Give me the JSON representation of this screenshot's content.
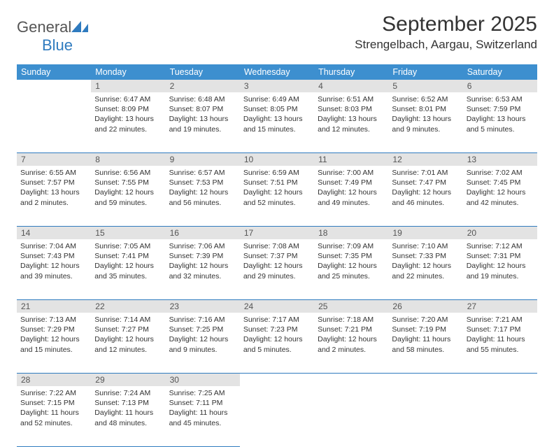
{
  "brand": {
    "name_part1": "General",
    "name_part2": "Blue",
    "logo_color": "#2f7bbf"
  },
  "title": "September 2025",
  "location": "Strengelbach, Aargau, Switzerland",
  "colors": {
    "header_bg": "#3d8fcf",
    "header_text": "#ffffff",
    "daynum_bg": "#e3e3e3",
    "border": "#2f7bbf",
    "text": "#333333"
  },
  "weekdays": [
    "Sunday",
    "Monday",
    "Tuesday",
    "Wednesday",
    "Thursday",
    "Friday",
    "Saturday"
  ],
  "weeks": [
    [
      {
        "n": "",
        "sunrise": "",
        "sunset": "",
        "daylight1": "",
        "daylight2": ""
      },
      {
        "n": "1",
        "sunrise": "Sunrise: 6:47 AM",
        "sunset": "Sunset: 8:09 PM",
        "daylight1": "Daylight: 13 hours",
        "daylight2": "and 22 minutes."
      },
      {
        "n": "2",
        "sunrise": "Sunrise: 6:48 AM",
        "sunset": "Sunset: 8:07 PM",
        "daylight1": "Daylight: 13 hours",
        "daylight2": "and 19 minutes."
      },
      {
        "n": "3",
        "sunrise": "Sunrise: 6:49 AM",
        "sunset": "Sunset: 8:05 PM",
        "daylight1": "Daylight: 13 hours",
        "daylight2": "and 15 minutes."
      },
      {
        "n": "4",
        "sunrise": "Sunrise: 6:51 AM",
        "sunset": "Sunset: 8:03 PM",
        "daylight1": "Daylight: 13 hours",
        "daylight2": "and 12 minutes."
      },
      {
        "n": "5",
        "sunrise": "Sunrise: 6:52 AM",
        "sunset": "Sunset: 8:01 PM",
        "daylight1": "Daylight: 13 hours",
        "daylight2": "and 9 minutes."
      },
      {
        "n": "6",
        "sunrise": "Sunrise: 6:53 AM",
        "sunset": "Sunset: 7:59 PM",
        "daylight1": "Daylight: 13 hours",
        "daylight2": "and 5 minutes."
      }
    ],
    [
      {
        "n": "7",
        "sunrise": "Sunrise: 6:55 AM",
        "sunset": "Sunset: 7:57 PM",
        "daylight1": "Daylight: 13 hours",
        "daylight2": "and 2 minutes."
      },
      {
        "n": "8",
        "sunrise": "Sunrise: 6:56 AM",
        "sunset": "Sunset: 7:55 PM",
        "daylight1": "Daylight: 12 hours",
        "daylight2": "and 59 minutes."
      },
      {
        "n": "9",
        "sunrise": "Sunrise: 6:57 AM",
        "sunset": "Sunset: 7:53 PM",
        "daylight1": "Daylight: 12 hours",
        "daylight2": "and 56 minutes."
      },
      {
        "n": "10",
        "sunrise": "Sunrise: 6:59 AM",
        "sunset": "Sunset: 7:51 PM",
        "daylight1": "Daylight: 12 hours",
        "daylight2": "and 52 minutes."
      },
      {
        "n": "11",
        "sunrise": "Sunrise: 7:00 AM",
        "sunset": "Sunset: 7:49 PM",
        "daylight1": "Daylight: 12 hours",
        "daylight2": "and 49 minutes."
      },
      {
        "n": "12",
        "sunrise": "Sunrise: 7:01 AM",
        "sunset": "Sunset: 7:47 PM",
        "daylight1": "Daylight: 12 hours",
        "daylight2": "and 46 minutes."
      },
      {
        "n": "13",
        "sunrise": "Sunrise: 7:02 AM",
        "sunset": "Sunset: 7:45 PM",
        "daylight1": "Daylight: 12 hours",
        "daylight2": "and 42 minutes."
      }
    ],
    [
      {
        "n": "14",
        "sunrise": "Sunrise: 7:04 AM",
        "sunset": "Sunset: 7:43 PM",
        "daylight1": "Daylight: 12 hours",
        "daylight2": "and 39 minutes."
      },
      {
        "n": "15",
        "sunrise": "Sunrise: 7:05 AM",
        "sunset": "Sunset: 7:41 PM",
        "daylight1": "Daylight: 12 hours",
        "daylight2": "and 35 minutes."
      },
      {
        "n": "16",
        "sunrise": "Sunrise: 7:06 AM",
        "sunset": "Sunset: 7:39 PM",
        "daylight1": "Daylight: 12 hours",
        "daylight2": "and 32 minutes."
      },
      {
        "n": "17",
        "sunrise": "Sunrise: 7:08 AM",
        "sunset": "Sunset: 7:37 PM",
        "daylight1": "Daylight: 12 hours",
        "daylight2": "and 29 minutes."
      },
      {
        "n": "18",
        "sunrise": "Sunrise: 7:09 AM",
        "sunset": "Sunset: 7:35 PM",
        "daylight1": "Daylight: 12 hours",
        "daylight2": "and 25 minutes."
      },
      {
        "n": "19",
        "sunrise": "Sunrise: 7:10 AM",
        "sunset": "Sunset: 7:33 PM",
        "daylight1": "Daylight: 12 hours",
        "daylight2": "and 22 minutes."
      },
      {
        "n": "20",
        "sunrise": "Sunrise: 7:12 AM",
        "sunset": "Sunset: 7:31 PM",
        "daylight1": "Daylight: 12 hours",
        "daylight2": "and 19 minutes."
      }
    ],
    [
      {
        "n": "21",
        "sunrise": "Sunrise: 7:13 AM",
        "sunset": "Sunset: 7:29 PM",
        "daylight1": "Daylight: 12 hours",
        "daylight2": "and 15 minutes."
      },
      {
        "n": "22",
        "sunrise": "Sunrise: 7:14 AM",
        "sunset": "Sunset: 7:27 PM",
        "daylight1": "Daylight: 12 hours",
        "daylight2": "and 12 minutes."
      },
      {
        "n": "23",
        "sunrise": "Sunrise: 7:16 AM",
        "sunset": "Sunset: 7:25 PM",
        "daylight1": "Daylight: 12 hours",
        "daylight2": "and 9 minutes."
      },
      {
        "n": "24",
        "sunrise": "Sunrise: 7:17 AM",
        "sunset": "Sunset: 7:23 PM",
        "daylight1": "Daylight: 12 hours",
        "daylight2": "and 5 minutes."
      },
      {
        "n": "25",
        "sunrise": "Sunrise: 7:18 AM",
        "sunset": "Sunset: 7:21 PM",
        "daylight1": "Daylight: 12 hours",
        "daylight2": "and 2 minutes."
      },
      {
        "n": "26",
        "sunrise": "Sunrise: 7:20 AM",
        "sunset": "Sunset: 7:19 PM",
        "daylight1": "Daylight: 11 hours",
        "daylight2": "and 58 minutes."
      },
      {
        "n": "27",
        "sunrise": "Sunrise: 7:21 AM",
        "sunset": "Sunset: 7:17 PM",
        "daylight1": "Daylight: 11 hours",
        "daylight2": "and 55 minutes."
      }
    ],
    [
      {
        "n": "28",
        "sunrise": "Sunrise: 7:22 AM",
        "sunset": "Sunset: 7:15 PM",
        "daylight1": "Daylight: 11 hours",
        "daylight2": "and 52 minutes."
      },
      {
        "n": "29",
        "sunrise": "Sunrise: 7:24 AM",
        "sunset": "Sunset: 7:13 PM",
        "daylight1": "Daylight: 11 hours",
        "daylight2": "and 48 minutes."
      },
      {
        "n": "30",
        "sunrise": "Sunrise: 7:25 AM",
        "sunset": "Sunset: 7:11 PM",
        "daylight1": "Daylight: 11 hours",
        "daylight2": "and 45 minutes."
      },
      {
        "n": "",
        "sunrise": "",
        "sunset": "",
        "daylight1": "",
        "daylight2": ""
      },
      {
        "n": "",
        "sunrise": "",
        "sunset": "",
        "daylight1": "",
        "daylight2": ""
      },
      {
        "n": "",
        "sunrise": "",
        "sunset": "",
        "daylight1": "",
        "daylight2": ""
      },
      {
        "n": "",
        "sunrise": "",
        "sunset": "",
        "daylight1": "",
        "daylight2": ""
      }
    ]
  ]
}
